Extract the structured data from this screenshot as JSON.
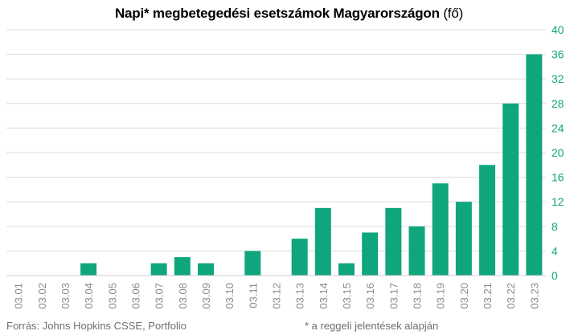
{
  "chart_data": {
    "type": "bar",
    "title": "Napi* megbetegedési esetszámok Magyarországon",
    "title_unit": "(fő)",
    "categories": [
      "03.01",
      "03.02",
      "03.03",
      "03.04",
      "03.05",
      "03.06",
      "03.07",
      "03.08",
      "03.09",
      "03.10",
      "03.11",
      "03.12",
      "03.13",
      "03.14",
      "03.15",
      "03.16",
      "03.17",
      "03.18",
      "03.19",
      "03.20",
      "03.21",
      "03.22",
      "03.23"
    ],
    "values": [
      0,
      0,
      0,
      2,
      0,
      0,
      2,
      3,
      2,
      0,
      4,
      0,
      6,
      11,
      2,
      7,
      11,
      8,
      15,
      12,
      18,
      28,
      36
    ],
    "ylim": [
      0,
      40
    ],
    "yticks": [
      0,
      4,
      8,
      12,
      16,
      20,
      24,
      28,
      32,
      36,
      40
    ],
    "y_axis_side": "right",
    "grid": true,
    "bar_color": "#0fa67d",
    "tick_label_color": "#0fa67d",
    "xtick_color": "#8a8a8a",
    "grid_color": "#dcdcdc"
  },
  "footer": {
    "source": "Forrás: Johns Hopkins CSSE, Portfolio",
    "note": "* a reggeli jelentések alapján"
  }
}
